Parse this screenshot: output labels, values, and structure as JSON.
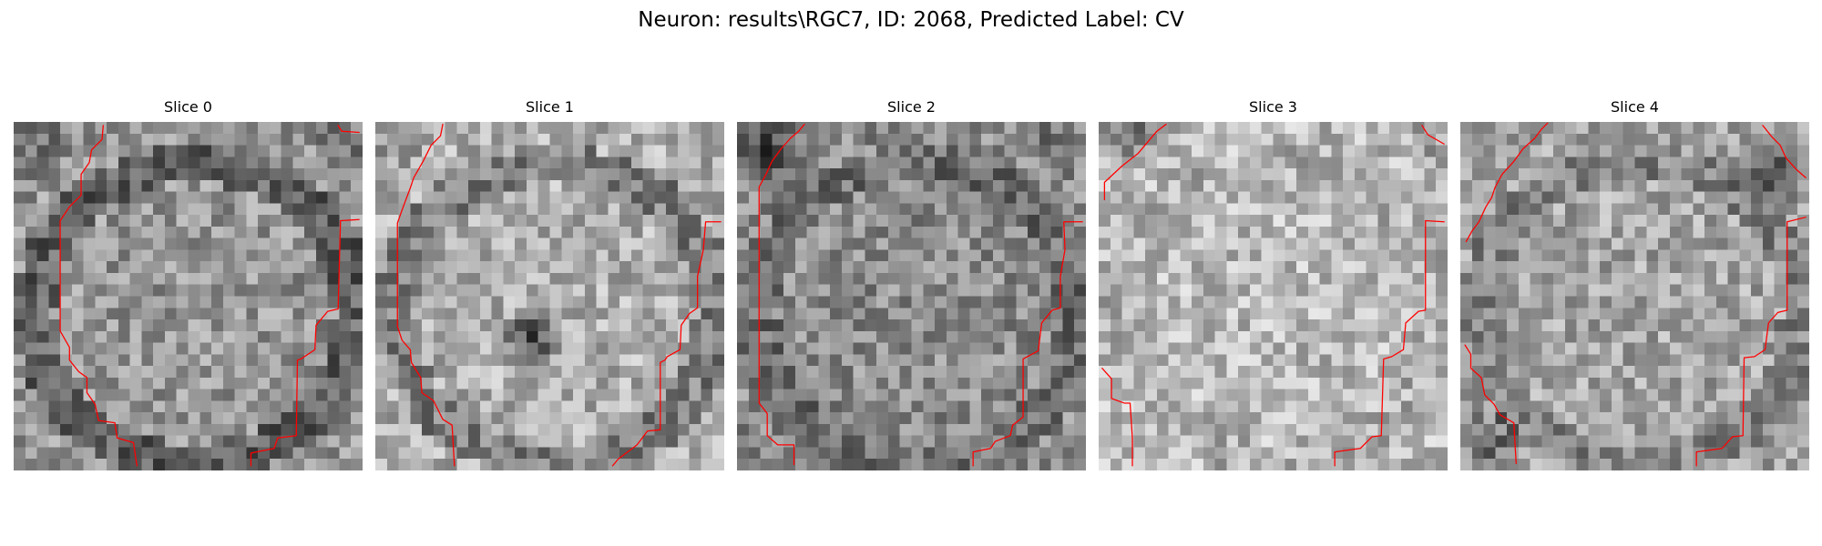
{
  "figure": {
    "title": "Neuron: results\\RGC7, ID: 2068, Predicted Label: CV"
  },
  "slices": [
    {
      "title": "Slice 0"
    },
    {
      "title": "Slice 1"
    },
    {
      "title": "Slice 2"
    },
    {
      "title": "Slice 3"
    },
    {
      "title": "Slice 4"
    }
  ],
  "colors": {
    "contour": "#ff0000",
    "colormap": "gray"
  }
}
